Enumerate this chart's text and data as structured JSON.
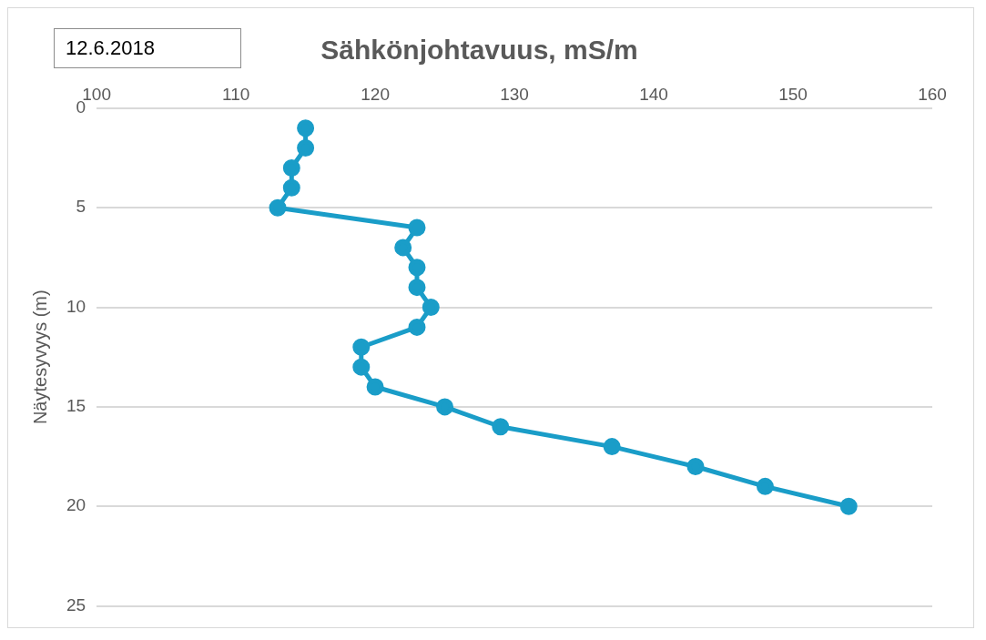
{
  "chart_data": {
    "type": "line",
    "title": "Sähkönjohtavuus, mS/m",
    "ylabel": "Näytesyvyys (m)",
    "annotations": [
      "12.6.2018"
    ],
    "x": [
      115,
      115,
      114,
      114,
      113,
      123,
      122,
      123,
      123,
      124,
      123,
      119,
      119,
      120,
      125,
      129,
      137,
      143,
      148,
      154
    ],
    "series": [
      {
        "color": "#1a9dc8",
        "values": [
          1,
          2,
          3,
          4,
          5,
          6,
          7,
          8,
          9,
          10,
          11,
          12,
          13,
          14,
          15,
          16,
          17,
          18,
          19,
          20
        ]
      }
    ],
    "xlim": [
      100,
      160
    ],
    "xticks": [
      100,
      110,
      120,
      130,
      140,
      150,
      160
    ],
    "ylim": [
      25,
      0
    ],
    "yticks": [
      0,
      5,
      10,
      15,
      20,
      25
    ],
    "grid": "y",
    "legend": false,
    "marker": "circle",
    "line_style": "solid"
  }
}
